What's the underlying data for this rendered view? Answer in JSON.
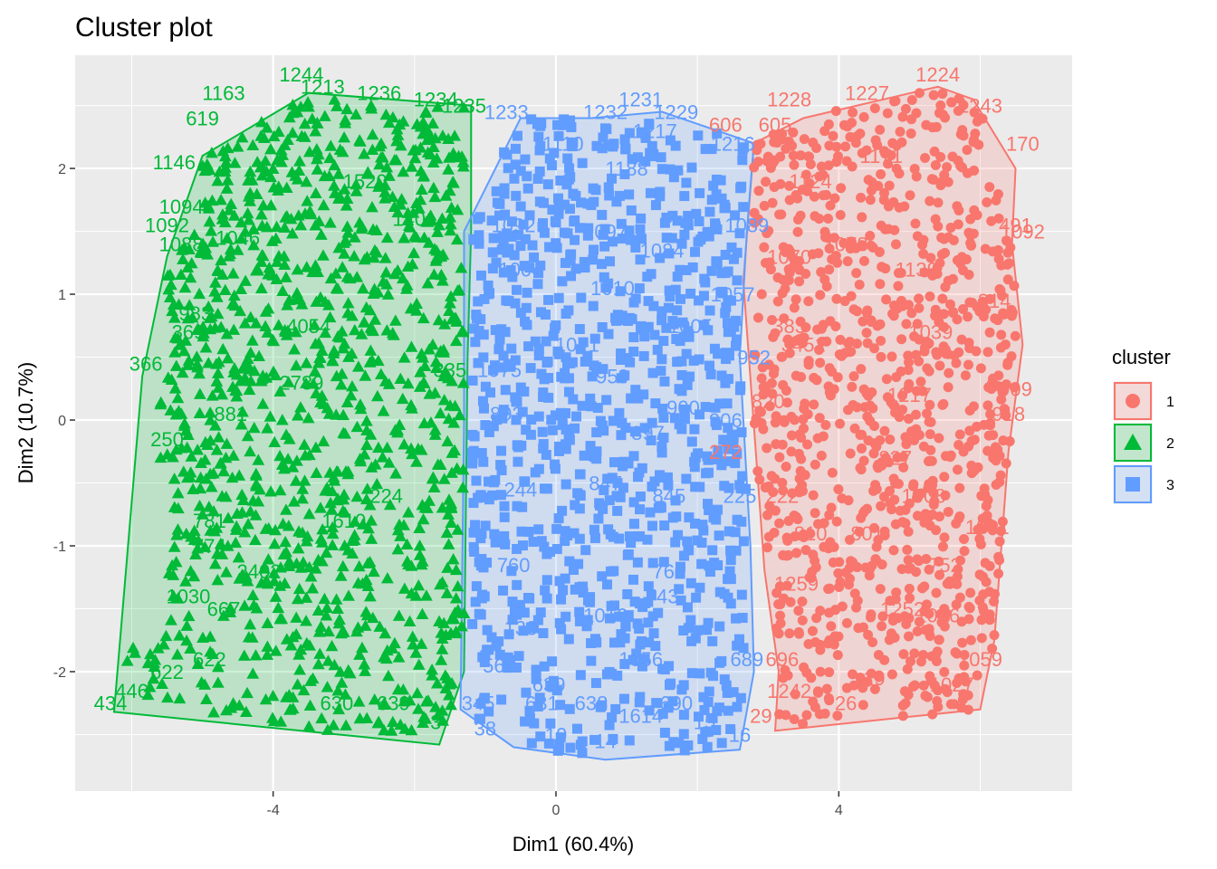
{
  "chart_data": {
    "type": "scatter",
    "title": "Cluster plot",
    "xlabel": "Dim1 (60.4%)",
    "ylabel": "Dim2 (10.7%)",
    "xlim": [
      -6.8,
      7.3
    ],
    "ylim": [
      -2.95,
      2.9
    ],
    "x_ticks": [
      -4,
      0,
      4
    ],
    "y_ticks": [
      -2,
      -1,
      0,
      1,
      2
    ],
    "x_tick_labels": [
      "-4",
      "0",
      "4"
    ],
    "y_tick_labels": [
      "-2",
      "-1",
      "0",
      "1",
      "2"
    ],
    "grid": true,
    "legend": {
      "title": "cluster",
      "position": "right",
      "entries": [
        {
          "label": "1",
          "color": "#F8766D",
          "shape": "circle"
        },
        {
          "label": "2",
          "color": "#00BA38",
          "shape": "triangle"
        },
        {
          "label": "3",
          "color": "#619CFF",
          "shape": "square"
        }
      ]
    },
    "series": [
      {
        "name": "1",
        "color": "#F8766D",
        "shape": "circle",
        "hull": [
          [
            3.1,
            -2.47
          ],
          [
            6.0,
            -2.3
          ],
          [
            6.2,
            -1.75
          ],
          [
            6.4,
            -0.25
          ],
          [
            6.6,
            0.6
          ],
          [
            6.45,
            1.4
          ],
          [
            6.5,
            2.0
          ],
          [
            5.9,
            2.55
          ],
          [
            5.4,
            2.65
          ],
          [
            3.5,
            2.4
          ],
          [
            2.8,
            2.2
          ],
          [
            2.65,
            1.1
          ],
          [
            2.95,
            -1.2
          ],
          [
            3.15,
            -2.0
          ]
        ],
        "labels": [
          {
            "x": 3.3,
            "y": 2.55,
            "t": "1228"
          },
          {
            "x": 4.4,
            "y": 2.6,
            "t": "1227"
          },
          {
            "x": 5.4,
            "y": 2.75,
            "t": "1224"
          },
          {
            "x": 6.0,
            "y": 2.5,
            "t": "1243"
          },
          {
            "x": 2.4,
            "y": 2.35,
            "t": "606"
          },
          {
            "x": 3.1,
            "y": 2.35,
            "t": "605"
          },
          {
            "x": 6.6,
            "y": 2.2,
            "t": "170"
          },
          {
            "x": 6.5,
            "y": 1.55,
            "t": "491"
          },
          {
            "x": 6.6,
            "y": 1.5,
            "t": "1092"
          },
          {
            "x": 6.2,
            "y": 0.95,
            "t": "314"
          },
          {
            "x": 6.5,
            "y": 0.25,
            "t": "909"
          },
          {
            "x": 6.4,
            "y": 0.05,
            "t": "918"
          },
          {
            "x": 6.1,
            "y": -0.85,
            "t": "1091"
          },
          {
            "x": 5.5,
            "y": -1.15,
            "t": "752"
          },
          {
            "x": 5.4,
            "y": -1.55,
            "t": "1026"
          },
          {
            "x": 6.0,
            "y": -1.9,
            "t": "1059"
          },
          {
            "x": 5.6,
            "y": -2.1,
            "t": "1027"
          },
          {
            "x": 4.5,
            "y": -2.05,
            "t": "19"
          },
          {
            "x": 4.1,
            "y": -2.25,
            "t": "26"
          },
          {
            "x": 3.3,
            "y": -2.15,
            "t": "1242"
          },
          {
            "x": 2.9,
            "y": -2.35,
            "t": "29"
          },
          {
            "x": 3.2,
            "y": -1.9,
            "t": "696"
          },
          {
            "x": 3.6,
            "y": -0.9,
            "t": "810"
          },
          {
            "x": 4.4,
            "y": -0.9,
            "t": "801"
          },
          {
            "x": 3.2,
            "y": -0.6,
            "t": "222"
          },
          {
            "x": 3.0,
            "y": 0.15,
            "t": "820"
          },
          {
            "x": 3.3,
            "y": 0.75,
            "t": "383"
          },
          {
            "x": 3.5,
            "y": 0.6,
            "t": "3451"
          },
          {
            "x": 3.3,
            "y": 1.3,
            "t": "1070"
          },
          {
            "x": 4.1,
            "y": 1.4,
            "t": "1078"
          },
          {
            "x": 3.6,
            "y": 1.9,
            "t": "1124"
          },
          {
            "x": 4.6,
            "y": 2.1,
            "t": "1171"
          },
          {
            "x": 5.1,
            "y": 1.2,
            "t": "1139"
          },
          {
            "x": 5.3,
            "y": 0.7,
            "t": "1039"
          },
          {
            "x": 4.8,
            "y": -0.3,
            "t": "827"
          },
          {
            "x": 5.2,
            "y": -0.6,
            "t": "1008"
          },
          {
            "x": 2.4,
            "y": -0.25,
            "t": "272"
          },
          {
            "x": 3.4,
            "y": -1.3,
            "t": "1259"
          },
          {
            "x": 4.9,
            "y": -1.5,
            "t": "1252"
          },
          {
            "x": 5.0,
            "y": 0.2,
            "t": "1217"
          }
        ],
        "clouds": [
          {
            "x": [
              2.8,
              6.5
            ],
            "y": [
              -2.45,
              -1.6
            ],
            "n": 160
          },
          {
            "x": 2.9,
            "y": [
              -1.6,
              -0.6
            ],
            "n": 0
          },
          {
            "x": [
              2.9,
              6.4
            ],
            "y": [
              -1.6,
              -0.6
            ],
            "n": 220
          },
          {
            "x": [
              2.8,
              6.5
            ],
            "y": [
              -0.6,
              0.5
            ],
            "n": 260
          },
          {
            "x": [
              2.8,
              6.5
            ],
            "y": [
              0.5,
              1.5
            ],
            "n": 240
          },
          {
            "x": [
              2.8,
              6.3
            ],
            "y": [
              1.5,
              2.6
            ],
            "n": 230
          }
        ]
      },
      {
        "name": "2",
        "color": "#00BA38",
        "shape": "triangle",
        "hull": [
          [
            -6.25,
            -2.32
          ],
          [
            -1.65,
            -2.58
          ],
          [
            -1.3,
            -2.0
          ],
          [
            -1.25,
            0.5
          ],
          [
            -1.2,
            1.5
          ],
          [
            -1.2,
            2.5
          ],
          [
            -3.5,
            2.6
          ],
          [
            -5.0,
            2.1
          ],
          [
            -5.5,
            1.3
          ],
          [
            -5.85,
            0.35
          ]
        ],
        "labels": [
          {
            "x": -3.6,
            "y": 2.75,
            "t": "1244"
          },
          {
            "x": -4.7,
            "y": 2.6,
            "t": "1163"
          },
          {
            "x": -3.3,
            "y": 2.65,
            "t": "1213"
          },
          {
            "x": -2.5,
            "y": 2.6,
            "t": "1236"
          },
          {
            "x": -1.7,
            "y": 2.55,
            "t": "1234"
          },
          {
            "x": -1.3,
            "y": 2.5,
            "t": "1235"
          },
          {
            "x": -5.0,
            "y": 2.4,
            "t": "619"
          },
          {
            "x": -5.4,
            "y": 2.05,
            "t": "1146"
          },
          {
            "x": -5.3,
            "y": 1.7,
            "t": "1094"
          },
          {
            "x": -5.5,
            "y": 1.55,
            "t": "1092"
          },
          {
            "x": -5.3,
            "y": 1.4,
            "t": "1088"
          },
          {
            "x": -4.5,
            "y": 1.45,
            "t": "1046"
          },
          {
            "x": -5.1,
            "y": 0.85,
            "t": "983"
          },
          {
            "x": -5.2,
            "y": 0.7,
            "t": "369"
          },
          {
            "x": -5.8,
            "y": 0.45,
            "t": "366"
          },
          {
            "x": -3.5,
            "y": 0.75,
            "t": "4054"
          },
          {
            "x": -4.6,
            "y": 0.05,
            "t": "881"
          },
          {
            "x": -5.5,
            "y": -0.15,
            "t": "250"
          },
          {
            "x": -4.9,
            "y": -0.8,
            "t": "781"
          },
          {
            "x": -4.9,
            "y": -1.0,
            "t": "774"
          },
          {
            "x": -5.2,
            "y": -1.4,
            "t": "1030"
          },
          {
            "x": -4.7,
            "y": -1.5,
            "t": "667"
          },
          {
            "x": -4.9,
            "y": -1.9,
            "t": "622"
          },
          {
            "x": -5.5,
            "y": -2.0,
            "t": "622"
          },
          {
            "x": -6.0,
            "y": -2.15,
            "t": "446"
          },
          {
            "x": -6.3,
            "y": -2.25,
            "t": "434"
          },
          {
            "x": -3.1,
            "y": -2.25,
            "t": "630"
          },
          {
            "x": -2.3,
            "y": -2.25,
            "t": "639"
          },
          {
            "x": -1.7,
            "y": -2.4,
            "t": "3"
          },
          {
            "x": -1.5,
            "y": 0.4,
            "t": "335"
          },
          {
            "x": -2.4,
            "y": -0.6,
            "t": "224"
          },
          {
            "x": -2.0,
            "y": 1.6,
            "t": "1401"
          },
          {
            "x": -3.6,
            "y": 0.3,
            "t": "2789"
          },
          {
            "x": -4.2,
            "y": -1.2,
            "t": "2402"
          },
          {
            "x": -3.0,
            "y": -0.8,
            "t": "1610"
          },
          {
            "x": -2.7,
            "y": 1.9,
            "t": "1520"
          }
        ],
        "clouds": [
          {
            "x": [
              -6.1,
              -1.4
            ],
            "y": [
              -2.5,
              -1.7
            ],
            "n": 160
          },
          {
            "x": [
              -5.5,
              -1.3
            ],
            "y": [
              -1.7,
              -0.6
            ],
            "n": 240
          },
          {
            "x": [
              -5.6,
              -1.3
            ],
            "y": [
              -0.6,
              0.5
            ],
            "n": 260
          },
          {
            "x": [
              -5.5,
              -1.3
            ],
            "y": [
              0.5,
              1.5
            ],
            "n": 250
          },
          {
            "x": [
              -5.0,
              -1.3
            ],
            "y": [
              1.5,
              2.55
            ],
            "n": 270
          }
        ]
      },
      {
        "name": "3",
        "color": "#619CFF",
        "shape": "square",
        "hull": [
          [
            -1.35,
            -2.3
          ],
          [
            -0.6,
            -2.6
          ],
          [
            0.7,
            -2.7
          ],
          [
            2.6,
            -2.62
          ],
          [
            2.8,
            -2.0
          ],
          [
            2.75,
            -1.0
          ],
          [
            2.6,
            0.5
          ],
          [
            2.7,
            1.5
          ],
          [
            2.8,
            2.2
          ],
          [
            1.5,
            2.45
          ],
          [
            0.5,
            2.4
          ],
          [
            -0.5,
            2.4
          ],
          [
            -1.3,
            1.5
          ],
          [
            -1.3,
            0.0
          ]
        ],
        "labels": [
          {
            "x": -0.7,
            "y": 2.45,
            "t": "1233"
          },
          {
            "x": 0.7,
            "y": 2.45,
            "t": "1232"
          },
          {
            "x": 1.2,
            "y": 2.55,
            "t": "1231"
          },
          {
            "x": 1.7,
            "y": 2.45,
            "t": "1229"
          },
          {
            "x": 0.1,
            "y": 2.2,
            "t": "1110"
          },
          {
            "x": 1.4,
            "y": 2.3,
            "t": "1217"
          },
          {
            "x": 2.5,
            "y": 2.2,
            "t": "1216"
          },
          {
            "x": 1.0,
            "y": 2.0,
            "t": "1188"
          },
          {
            "x": -0.6,
            "y": 1.55,
            "t": "1092"
          },
          {
            "x": 0.7,
            "y": 1.5,
            "t": "1097"
          },
          {
            "x": 1.5,
            "y": 1.35,
            "t": "1084"
          },
          {
            "x": -0.5,
            "y": 1.2,
            "t": "1004"
          },
          {
            "x": 0.8,
            "y": 1.05,
            "t": "1010"
          },
          {
            "x": 1.9,
            "y": 0.75,
            "t": "1005"
          },
          {
            "x": 0.3,
            "y": 0.6,
            "t": "1071"
          },
          {
            "x": -0.8,
            "y": 0.4,
            "t": "1075"
          },
          {
            "x": 0.8,
            "y": 0.35,
            "t": "959"
          },
          {
            "x": 1.8,
            "y": 0.1,
            "t": "900"
          },
          {
            "x": -0.7,
            "y": 0.05,
            "t": "893"
          },
          {
            "x": 1.3,
            "y": -0.1,
            "t": "897"
          },
          {
            "x": -0.5,
            "y": -0.55,
            "t": "244"
          },
          {
            "x": 0.7,
            "y": -0.5,
            "t": "847"
          },
          {
            "x": 1.6,
            "y": -0.6,
            "t": "845"
          },
          {
            "x": 2.6,
            "y": -0.6,
            "t": "225"
          },
          {
            "x": -0.6,
            "y": -1.15,
            "t": "760"
          },
          {
            "x": 1.6,
            "y": -1.2,
            "t": "760"
          },
          {
            "x": 1.5,
            "y": -1.4,
            "t": "743"
          },
          {
            "x": -0.5,
            "y": -1.65,
            "t": "138"
          },
          {
            "x": 0.7,
            "y": -1.55,
            "t": "1016"
          },
          {
            "x": 1.2,
            "y": -1.9,
            "t": "1056"
          },
          {
            "x": -0.8,
            "y": -1.95,
            "t": "560"
          },
          {
            "x": -0.1,
            "y": -2.1,
            "t": "639"
          },
          {
            "x": -0.2,
            "y": -2.25,
            "t": "631"
          },
          {
            "x": 0.5,
            "y": -2.25,
            "t": "638"
          },
          {
            "x": 1.7,
            "y": -2.25,
            "t": "690"
          },
          {
            "x": 1.2,
            "y": -2.35,
            "t": "1614"
          },
          {
            "x": -1.1,
            "y": -2.25,
            "t": "345"
          },
          {
            "x": -1.0,
            "y": -2.45,
            "t": "38"
          },
          {
            "x": 0.0,
            "y": -2.5,
            "t": "10"
          },
          {
            "x": 0.7,
            "y": -2.55,
            "t": "14"
          },
          {
            "x": 2.1,
            "y": -2.4,
            "t": "15"
          },
          {
            "x": 2.6,
            "y": -2.5,
            "t": "16"
          },
          {
            "x": 2.7,
            "y": -1.9,
            "t": "689"
          },
          {
            "x": 2.8,
            "y": 0.5,
            "t": "952"
          },
          {
            "x": 2.4,
            "y": 0.0,
            "t": "906"
          },
          {
            "x": 2.5,
            "y": 1.0,
            "t": "1057"
          },
          {
            "x": 2.7,
            "y": 1.55,
            "t": "1089"
          }
        ],
        "clouds": [
          {
            "x": [
              -1.2,
              2.7
            ],
            "y": [
              -2.65,
              -1.7
            ],
            "n": 150
          },
          {
            "x": [
              -1.2,
              2.7
            ],
            "y": [
              -1.7,
              -0.6
            ],
            "n": 220
          },
          {
            "x": [
              -1.2,
              2.7
            ],
            "y": [
              -0.6,
              0.5
            ],
            "n": 240
          },
          {
            "x": [
              -1.2,
              2.7
            ],
            "y": [
              0.5,
              1.5
            ],
            "n": 220
          },
          {
            "x": [
              -1.2,
              2.7
            ],
            "y": [
              1.5,
              2.4
            ],
            "n": 180
          }
        ]
      }
    ]
  }
}
